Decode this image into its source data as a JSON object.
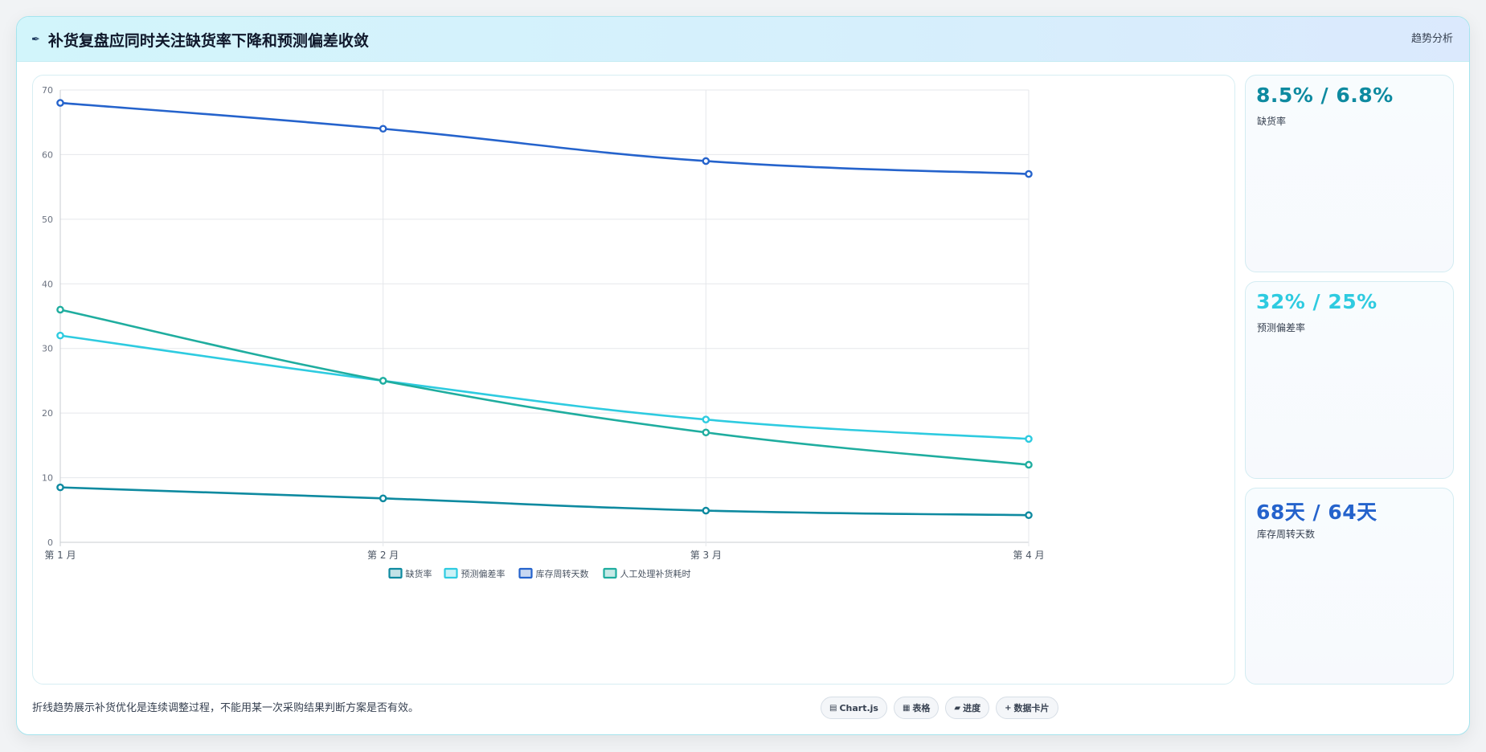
{
  "header": {
    "icon": "pen-icon",
    "title": "补货复盘应同时关注缺货率下降和预测偏差收敛",
    "tag": "趋势分析"
  },
  "kpis": [
    {
      "value": "8.5% / 6.8%",
      "label": "缺货率",
      "color": "#0e8aa0"
    },
    {
      "value": "32% / 25%",
      "label": "预测偏差率",
      "color": "#2ecbe0"
    },
    {
      "value": "68天 / 64天",
      "label": "库存周转天数",
      "color": "#2563cc"
    }
  ],
  "footer": {
    "note": "折线趋势展示补货优化是连续调整过程，不能用某一次采购结果判断方案是否有效。",
    "chips": [
      {
        "icon": "chart-icon",
        "glyph": "▤",
        "label": "Chart.js"
      },
      {
        "icon": "table-icon",
        "glyph": "▦",
        "label": "表格"
      },
      {
        "icon": "progress-icon",
        "glyph": "▰",
        "label": "进度"
      },
      {
        "icon": "plus-icon",
        "glyph": "+",
        "label": "数据卡片"
      }
    ]
  },
  "chart_data": {
    "type": "line",
    "categories": [
      "第 1 月",
      "第 2 月",
      "第 3 月",
      "第 4 月"
    ],
    "ylim": [
      0,
      70
    ],
    "yticks": [
      0,
      10,
      20,
      30,
      40,
      50,
      60,
      70
    ],
    "grid": true,
    "legend_position": "bottom",
    "series": [
      {
        "name": "缺货率",
        "color": "#0e8aa0",
        "values": [
          8.5,
          6.8,
          4.9,
          4.2
        ]
      },
      {
        "name": "预测偏差率",
        "color": "#2ecbe0",
        "values": [
          32,
          25,
          19,
          16
        ]
      },
      {
        "name": "库存周转天数",
        "color": "#2563cc",
        "values": [
          68,
          64,
          59,
          57
        ]
      },
      {
        "name": "人工处理补货耗时",
        "color": "#1fad9f",
        "values": [
          36,
          25,
          17,
          12
        ]
      }
    ]
  }
}
